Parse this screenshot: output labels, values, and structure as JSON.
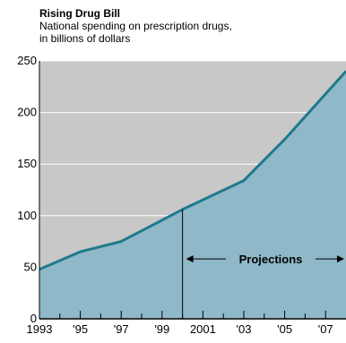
{
  "chart_data": {
    "type": "area",
    "title": "Rising Drug Bill",
    "subtitle": "National spending on prescription drugs, in billions of dollars",
    "subtitle_lines": [
      "National spending on prescription drugs,",
      "in billions of dollars"
    ],
    "xlabel": "",
    "ylabel": "",
    "x": [
      1993,
      1995,
      1997,
      2000,
      2003,
      2005,
      2008
    ],
    "values": [
      48,
      65,
      75,
      106,
      134,
      174,
      240
    ],
    "xlim": [
      1993,
      2008
    ],
    "ylim": [
      0,
      250
    ],
    "y_ticks": [
      0,
      50,
      100,
      150,
      200,
      250
    ],
    "x_ticks": [
      {
        "value": 1993,
        "label": "1993"
      },
      {
        "value": 1995,
        "label": "'95"
      },
      {
        "value": 1997,
        "label": "'97"
      },
      {
        "value": 1999,
        "label": "'99"
      },
      {
        "value": 2001,
        "label": "2001"
      },
      {
        "value": 2003,
        "label": "'03"
      },
      {
        "value": 2005,
        "label": "'05"
      },
      {
        "value": 2007,
        "label": "'07"
      }
    ],
    "minor_x_ticks": [
      1994,
      1996,
      1998,
      2000,
      2002,
      2004,
      2006
    ],
    "projection_start": 2000,
    "annotation": "Projections",
    "grid": true,
    "colors": {
      "background": "#c8c8c8",
      "area": "#8fb8c8",
      "line": "#1e7a8c",
      "grid": "#ffffff"
    }
  }
}
